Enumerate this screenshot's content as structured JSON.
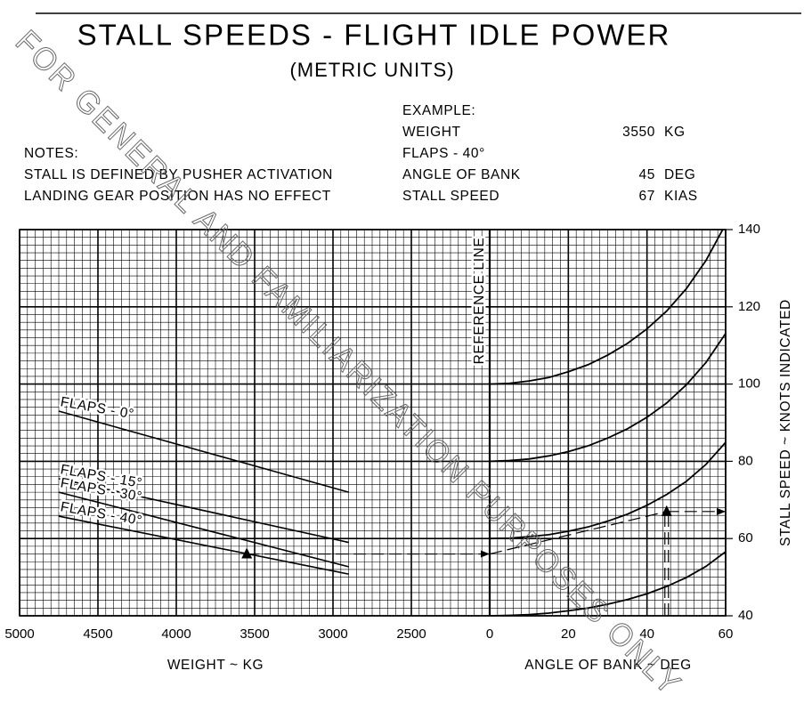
{
  "chart_data": {
    "type": "line",
    "title": "STALL SPEEDS - FLIGHT IDLE POWER",
    "subtitle": "(METRIC UNITS)",
    "notes": {
      "heading": "NOTES:",
      "lines": [
        "STALL IS DEFINED BY PUSHER ACTIVATION",
        "LANDING GEAR POSITION HAS NO EFFECT"
      ]
    },
    "example": {
      "heading": "EXAMPLE:",
      "weight_label": "WEIGHT",
      "weight": 3550,
      "weight_unit": "KG",
      "flaps": "FLAPS - 40°",
      "bank_label": "ANGLE OF BANK",
      "bank": 45,
      "bank_unit": "DEG",
      "speed_label": "STALL SPEED",
      "speed": 67,
      "speed_unit": "KIAS",
      "reference_speed": 56
    },
    "watermark": "FOR GENERAL AND FAMILIARIZATION PURPOSES ONLY",
    "reference_line_label": "REFERENCE LINE",
    "weight_axis": {
      "label": "WEIGHT ~ KG",
      "lim": [
        5000,
        2000
      ],
      "ticks": [
        5000,
        4500,
        4000,
        3500,
        3000,
        2500
      ]
    },
    "bank_axis": {
      "label": "ANGLE OF BANK ~ DEG",
      "lim": [
        0,
        60
      ],
      "ticks": [
        0,
        20,
        40,
        60
      ]
    },
    "ylabel": "STALL SPEED ~ KNOTS INDICATED",
    "ylim": [
      40,
      140
    ],
    "yticks": [
      40,
      60,
      80,
      100,
      120,
      140
    ],
    "grid": true,
    "color": "#000000",
    "flaps_series": [
      {
        "name": "FLAPS - 0°",
        "x": [
          4750,
          2900
        ],
        "values": [
          93,
          72
        ]
      },
      {
        "name": "FLAPS - 15°",
        "x": [
          4750,
          2900
        ],
        "values": [
          75.5,
          59
        ]
      },
      {
        "name": "FLAPS - 30°",
        "x": [
          4750,
          2900
        ],
        "values": [
          72,
          52.7
        ]
      },
      {
        "name": "FLAPS - 40°",
        "x": [
          4750,
          2900
        ],
        "values": [
          65.8,
          50.8
        ]
      }
    ],
    "bank_x": [
      0,
      5,
      10,
      15,
      20,
      25,
      30,
      35,
      40,
      45,
      50,
      55,
      60
    ],
    "bank_series": [
      {
        "values": [
          100,
          100.2,
          100.8,
          101.7,
          103.2,
          105.0,
          107.5,
          110.5,
          114.3,
          118.9,
          124.7,
          132.0,
          141.4
        ]
      },
      {
        "values": [
          80,
          80.2,
          80.6,
          81.4,
          82.5,
          84.0,
          86.0,
          88.4,
          91.4,
          95.1,
          99.8,
          105.6,
          113.1
        ]
      },
      {
        "values": [
          60,
          60.1,
          60.5,
          61.0,
          61.9,
          63.0,
          64.5,
          66.3,
          68.6,
          71.4,
          74.8,
          79.2,
          84.9
        ]
      },
      {
        "values": [
          40,
          40.1,
          40.3,
          40.7,
          41.3,
          42.0,
          43.0,
          44.2,
          45.7,
          47.6,
          49.9,
          52.8,
          56.6
        ]
      }
    ]
  }
}
